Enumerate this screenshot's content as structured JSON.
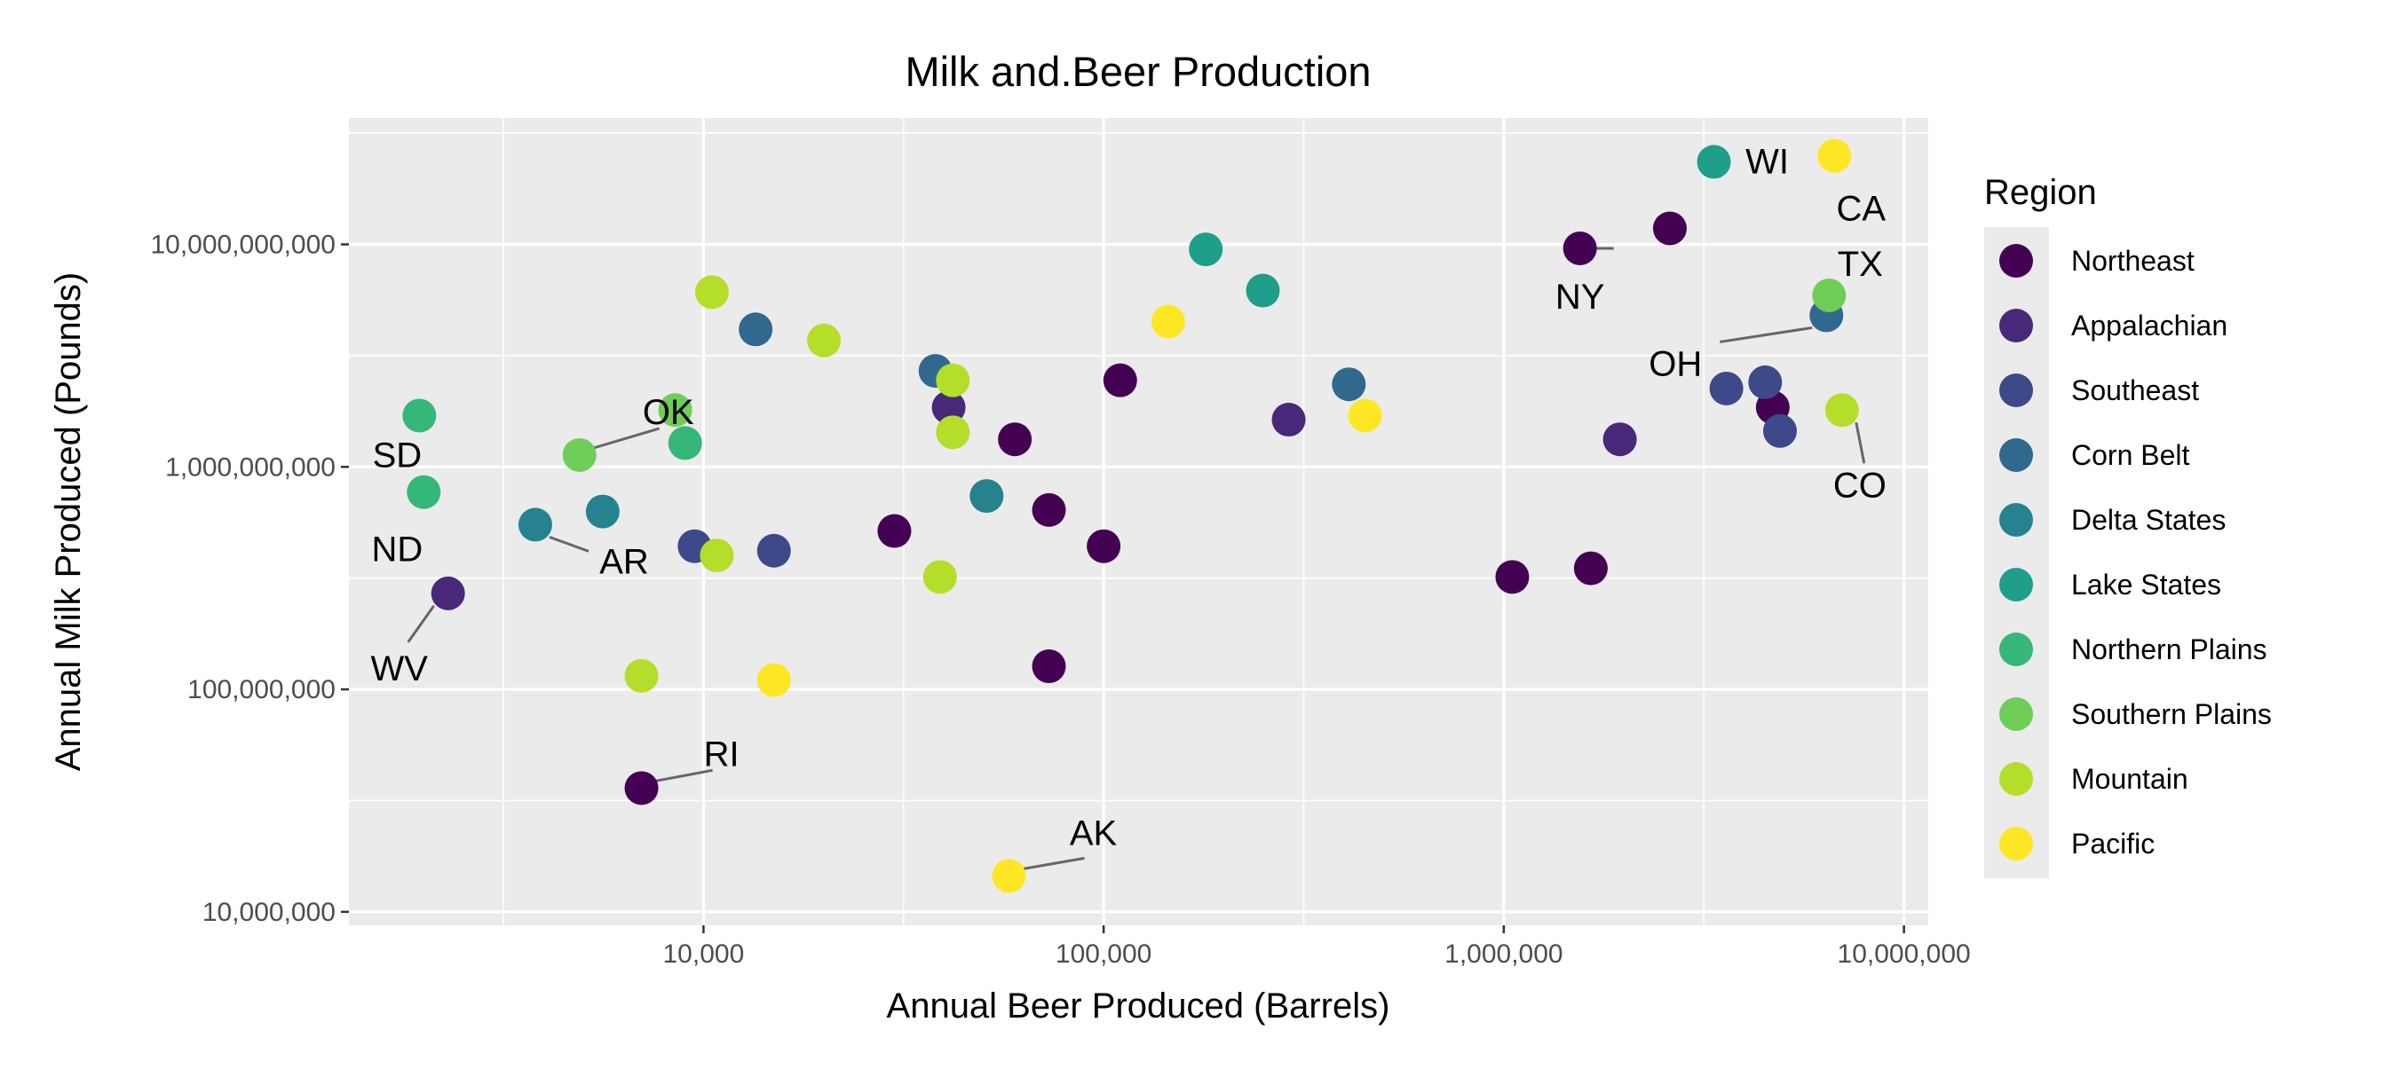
{
  "chart_data": {
    "type": "scatter",
    "title": "Milk and.Beer Production",
    "xlabel": "Annual Beer Produced (Barrels)",
    "ylabel": "Annual Milk Produced (Pounds)",
    "x_scale": "log",
    "y_scale": "log",
    "xlim": [
      1300,
      11500000
    ],
    "ylim": [
      8700000,
      37000000000
    ],
    "x_ticks": [
      {
        "value": 10000,
        "label": "10,000"
      },
      {
        "value": 100000,
        "label": "100,000"
      },
      {
        "value": 1000000,
        "label": "1,000,000"
      },
      {
        "value": 10000000,
        "label": "10,000,000"
      }
    ],
    "y_ticks": [
      {
        "value": 10000000,
        "label": "10,000,000"
      },
      {
        "value": 100000000,
        "label": "100,000,000"
      },
      {
        "value": 1000000000,
        "label": "1,000,000,000"
      },
      {
        "value": 10000000000,
        "label": "10,000,000,000"
      }
    ],
    "grid": true,
    "legend_title": "Region",
    "legend_position": "right",
    "series": [
      {
        "name": "Northeast",
        "color": "#440154",
        "points": [
          {
            "x": 2600000,
            "y": 11800000000
          },
          {
            "x": 1550000,
            "y": 9600000000,
            "label": "NY"
          },
          {
            "x": 4700000,
            "y": 1850000000
          },
          {
            "x": 110000,
            "y": 2450000000
          },
          {
            "x": 60000,
            "y": 1330000000
          },
          {
            "x": 73000,
            "y": 640000000
          },
          {
            "x": 100000,
            "y": 440000000
          },
          {
            "x": 30000,
            "y": 515000000
          },
          {
            "x": 73000,
            "y": 127000000
          },
          {
            "x": 7000,
            "y": 36000000,
            "label": "RI"
          },
          {
            "x": 1050000,
            "y": 320000000
          },
          {
            "x": 1650000,
            "y": 350000000
          }
        ]
      },
      {
        "name": "Appalachian",
        "color": "#482878",
        "points": [
          {
            "x": 41000,
            "y": 1850000000
          },
          {
            "x": 290000,
            "y": 1630000000
          },
          {
            "x": 1950000,
            "y": 1330000000
          },
          {
            "x": 2300,
            "y": 270000000,
            "label": "WV"
          }
        ]
      },
      {
        "name": "Southeast",
        "color": "#3e4989",
        "points": [
          {
            "x": 9500,
            "y": 440000000
          },
          {
            "x": 15000,
            "y": 420000000
          },
          {
            "x": 3600000,
            "y": 2250000000
          },
          {
            "x": 4500000,
            "y": 2400000000
          },
          {
            "x": 4900000,
            "y": 1450000000
          }
        ]
      },
      {
        "name": "Corn Belt",
        "color": "#31688e",
        "points": [
          {
            "x": 13500,
            "y": 4150000000
          },
          {
            "x": 38000,
            "y": 2700000000
          },
          {
            "x": 410000,
            "y": 2350000000
          },
          {
            "x": 6400000,
            "y": 4800000000,
            "label": "OH"
          }
        ]
      },
      {
        "name": "Delta States",
        "color": "#26828e",
        "points": [
          {
            "x": 3800,
            "y": 550000000,
            "label": "AR"
          },
          {
            "x": 5600,
            "y": 630000000
          },
          {
            "x": 51000,
            "y": 740000000
          }
        ]
      },
      {
        "name": "Lake States",
        "color": "#1f9e89",
        "points": [
          {
            "x": 3350000,
            "y": 23500000000,
            "label": "WI"
          },
          {
            "x": 180000,
            "y": 9500000000
          },
          {
            "x": 250000,
            "y": 6200000000
          }
        ]
      },
      {
        "name": "Northern Plains",
        "color": "#35b779",
        "points": [
          {
            "x": 1950,
            "y": 1700000000,
            "label": "SD"
          },
          {
            "x": 2000,
            "y": 770000000,
            "label": "ND"
          },
          {
            "x": 9000,
            "y": 1280000000
          }
        ]
      },
      {
        "name": "Southern Plains",
        "color": "#6ece58",
        "points": [
          {
            "x": 4900,
            "y": 1130000000,
            "label": "OK"
          },
          {
            "x": 8500,
            "y": 1800000000
          },
          {
            "x": 6500000,
            "y": 5900000000,
            "label": "TX"
          }
        ]
      },
      {
        "name": "Mountain",
        "color": "#b5de2b",
        "points": [
          {
            "x": 10500,
            "y": 6100000000
          },
          {
            "x": 20000,
            "y": 3700000000
          },
          {
            "x": 42000,
            "y": 2450000000
          },
          {
            "x": 42000,
            "y": 1430000000
          },
          {
            "x": 10800,
            "y": 400000000
          },
          {
            "x": 39000,
            "y": 320000000
          },
          {
            "x": 7000,
            "y": 115000000
          },
          {
            "x": 7000000,
            "y": 1800000000,
            "label": "CO"
          }
        ]
      },
      {
        "name": "Pacific",
        "color": "#fde725",
        "points": [
          {
            "x": 6700000,
            "y": 25000000000,
            "label": "CA"
          },
          {
            "x": 145000,
            "y": 4500000000
          },
          {
            "x": 450000,
            "y": 1700000000
          },
          {
            "x": 15000,
            "y": 110000000
          },
          {
            "x": 58000,
            "y": 14500000,
            "label": "AK"
          }
        ]
      }
    ]
  }
}
